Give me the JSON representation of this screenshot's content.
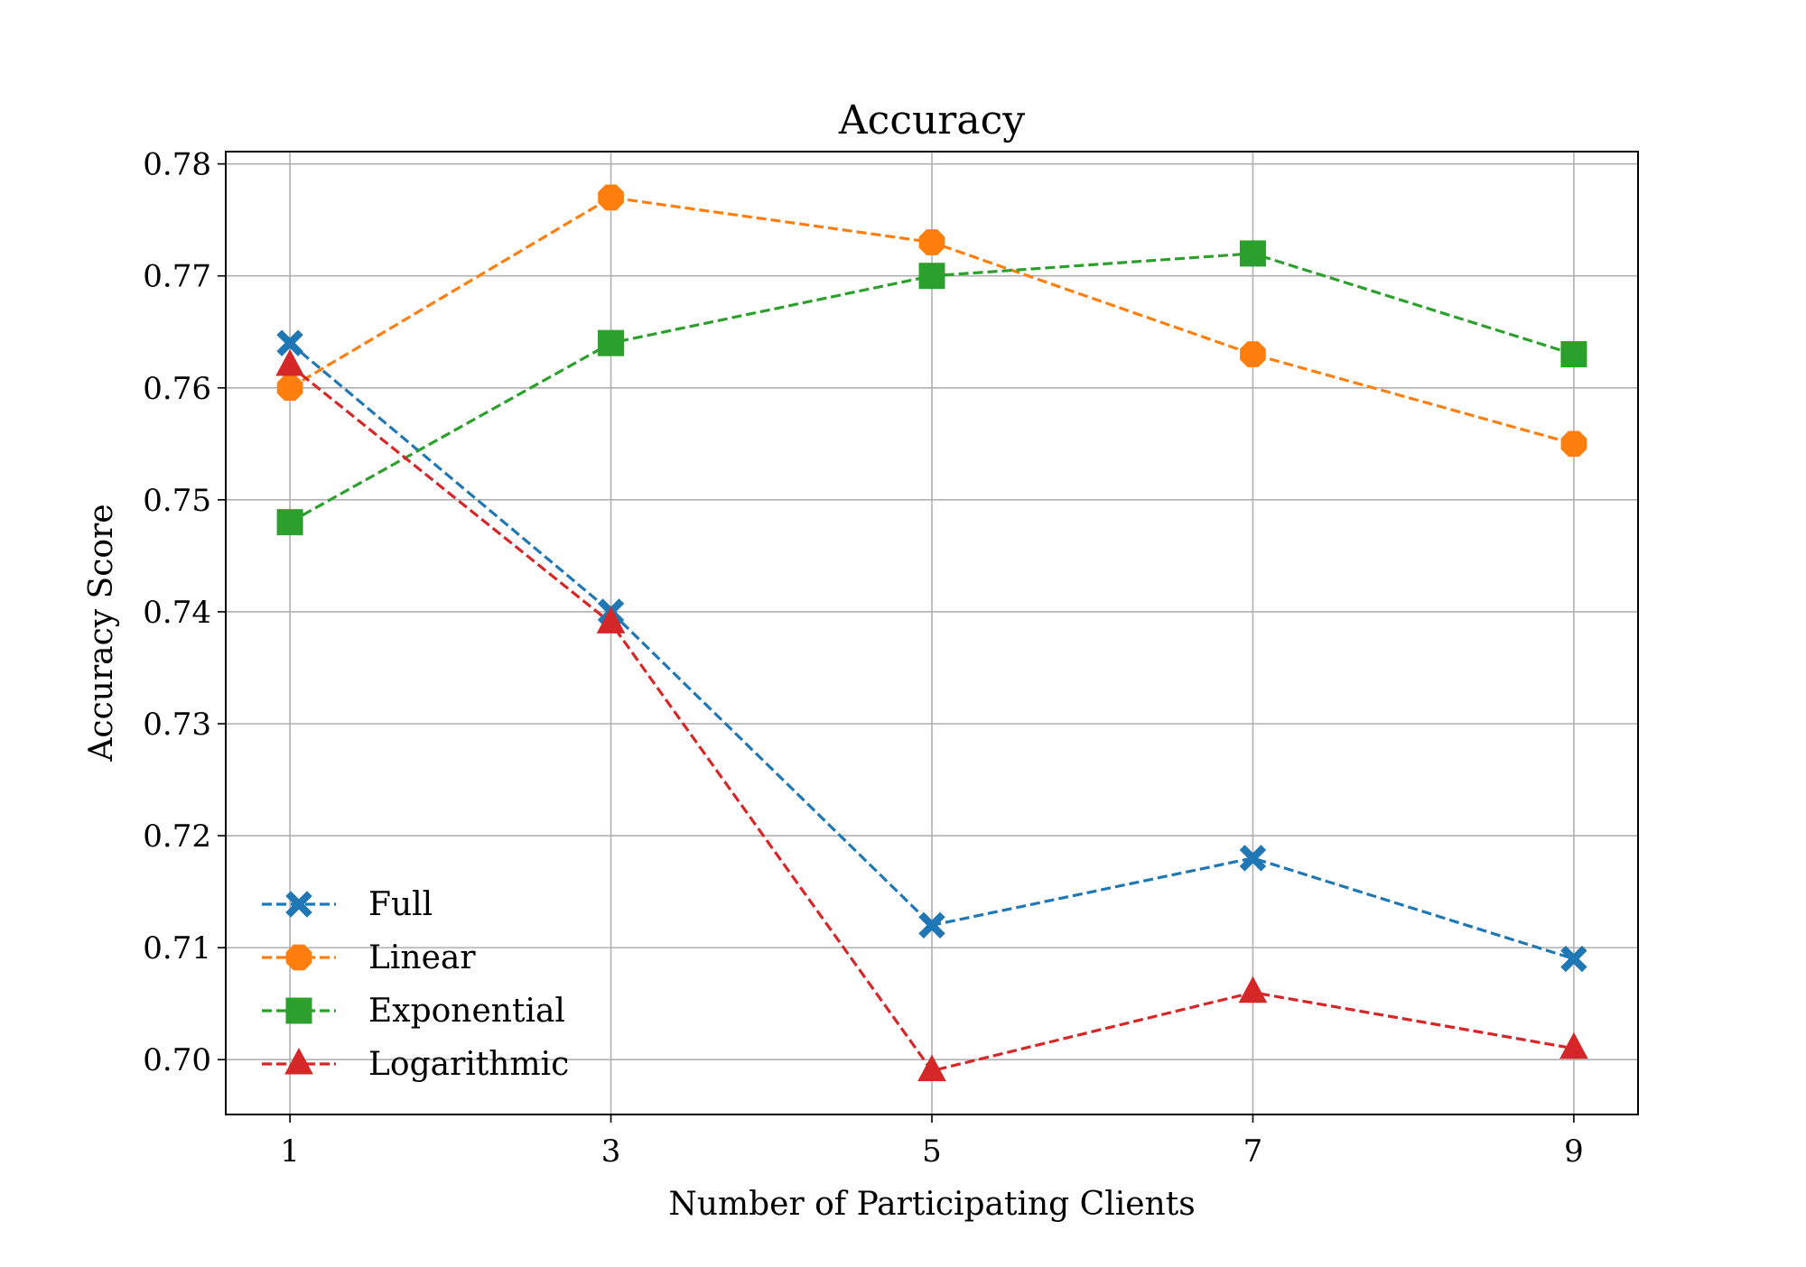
{
  "chart_data": {
    "type": "line",
    "title": "Accuracy",
    "xlabel": "Number of Participating Clients",
    "ylabel": "Accuracy Score",
    "x": [
      1,
      3,
      5,
      7,
      9
    ],
    "xticks": [
      "1",
      "3",
      "5",
      "7",
      "9"
    ],
    "xlim": [
      0.6,
      9.4
    ],
    "ylim": [
      0.6951,
      0.7811
    ],
    "yticks": [
      0.7,
      0.71,
      0.72,
      0.73,
      0.74,
      0.75,
      0.76,
      0.77,
      0.78
    ],
    "ytick_labels": [
      "0.70",
      "0.71",
      "0.72",
      "0.73",
      "0.74",
      "0.75",
      "0.76",
      "0.77",
      "0.78"
    ],
    "grid": true,
    "legend_position": "lower-left",
    "line_style": "dashed",
    "series": [
      {
        "name": "Full",
        "color": "#1f77b4",
        "marker": "x-filled",
        "values": [
          0.764,
          0.74,
          0.712,
          0.718,
          0.709
        ]
      },
      {
        "name": "Linear",
        "color": "#ff7f0e",
        "marker": "octagon",
        "values": [
          0.76,
          0.777,
          0.773,
          0.763,
          0.755
        ]
      },
      {
        "name": "Exponential",
        "color": "#2ca02c",
        "marker": "square",
        "values": [
          0.748,
          0.764,
          0.77,
          0.772,
          0.763
        ]
      },
      {
        "name": "Logarithmic",
        "color": "#d62728",
        "marker": "triangle-up",
        "values": [
          0.762,
          0.739,
          0.699,
          0.706,
          0.701
        ]
      }
    ]
  }
}
